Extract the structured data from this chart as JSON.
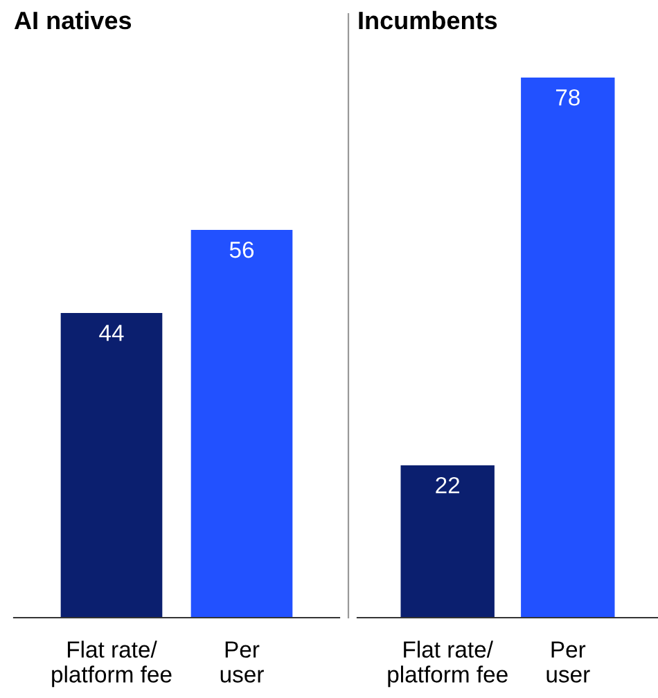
{
  "chart_data": [
    {
      "type": "bar",
      "title": "AI natives",
      "categories": [
        "Flat rate/\nplatform fee",
        "Per\nuser"
      ],
      "values": [
        44,
        56
      ],
      "colors": [
        "#0b1f6f",
        "#2251ff"
      ],
      "data_labels": true,
      "tick_labels": "x",
      "grid": false,
      "legend": false
    },
    {
      "type": "bar",
      "title": "Incumbents",
      "categories": [
        "Flat rate/\nplatform fee",
        "Per\nuser"
      ],
      "values": [
        22,
        78
      ],
      "colors": [
        "#0b1f6f",
        "#2251ff"
      ],
      "data_labels": true,
      "tick_labels": "x",
      "grid": false,
      "legend": false
    }
  ]
}
